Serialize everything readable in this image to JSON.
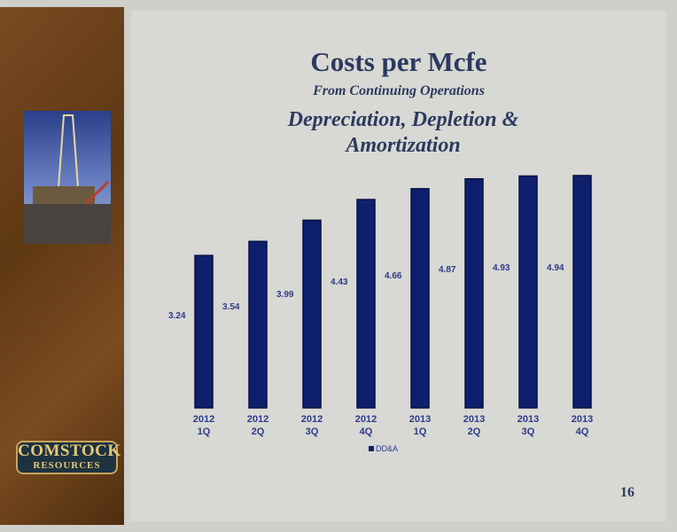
{
  "header": {
    "title": "Costs per Mcfe",
    "subtitle": "From Continuing Operations"
  },
  "logo": {
    "line1": "COMSTOCK",
    "line2": "RESOURCES"
  },
  "page_number": "16",
  "chart_data": {
    "type": "bar",
    "title": "Depreciation, Depletion & Amortization",
    "categories": [
      "2012\n1Q",
      "2012\n2Q",
      "2012\n3Q",
      "2012\n4Q",
      "2013\n1Q",
      "2013\n2Q",
      "2013\n3Q",
      "2013\n4Q"
    ],
    "series": [
      {
        "name": "DD&A",
        "color": "#0e1f6e",
        "values": [
          3.24,
          3.54,
          3.99,
          4.43,
          4.66,
          4.87,
          4.93,
          4.94
        ]
      }
    ],
    "legend": "bottom"
  }
}
